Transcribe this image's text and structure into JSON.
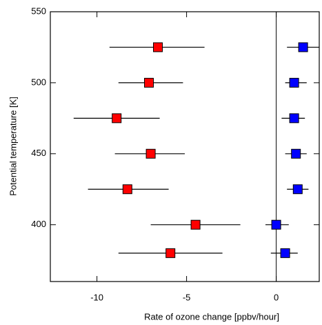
{
  "chart_data": {
    "type": "scatter",
    "xlabel": "Rate of ozone change [ppbv/hour]",
    "ylabel": "Potential temperature [K]",
    "xlim": [
      -12.6,
      2.4
    ],
    "xticks": [
      -10,
      -5,
      0
    ],
    "ylim": [
      360,
      550
    ],
    "yticks": [
      400,
      450,
      500,
      550
    ],
    "vline": 0,
    "series": [
      {
        "color": "#ff0000",
        "x": [
          -6.6,
          -7.1,
          -8.9,
          -7.0,
          -8.3,
          -4.5,
          -5.9
        ],
        "xmin": [
          -9.3,
          -8.8,
          -11.3,
          -9.0,
          -10.5,
          -7.0,
          -8.8
        ],
        "xmax": [
          -4.0,
          -5.2,
          -6.5,
          -5.1,
          -6.0,
          -2.0,
          -3.0
        ],
        "values": [
          525,
          500,
          475,
          450,
          425,
          400,
          380
        ]
      },
      {
        "color": "#0000ff",
        "x": [
          1.5,
          1.0,
          1.0,
          1.1,
          1.2,
          0.0,
          0.5
        ],
        "xmin": [
          0.6,
          0.5,
          0.3,
          0.5,
          0.6,
          -0.6,
          -0.3
        ],
        "xmax": [
          2.4,
          1.7,
          1.6,
          1.7,
          1.8,
          0.7,
          1.2
        ],
        "values": [
          525,
          500,
          475,
          450,
          425,
          400,
          380
        ]
      }
    ]
  }
}
